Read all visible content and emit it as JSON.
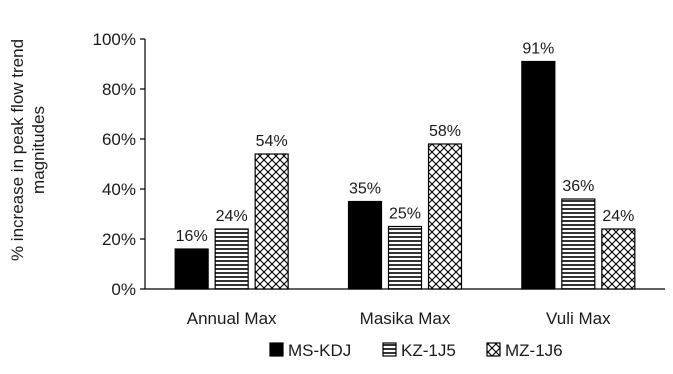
{
  "chart_data": {
    "type": "bar",
    "title": "",
    "xlabel": "",
    "ylabel_lines": [
      "% increase in peak flow trend",
      "magnitudes"
    ],
    "categories": [
      "Annual Max",
      "Masika Max",
      "Vuli Max"
    ],
    "series": [
      {
        "name": "MS-KDJ",
        "values": [
          16,
          35,
          91
        ],
        "labels": [
          "16%",
          "35%",
          "91%"
        ],
        "pattern": "solid"
      },
      {
        "name": "KZ-1J5",
        "values": [
          24,
          25,
          36
        ],
        "labels": [
          "24%",
          "25%",
          "36%"
        ],
        "pattern": "horizontal-lines"
      },
      {
        "name": "MZ-1J6",
        "values": [
          54,
          58,
          24
        ],
        "labels": [
          "54%",
          "58%",
          "24%"
        ],
        "pattern": "crosshatch"
      }
    ],
    "ylim": [
      0,
      100
    ],
    "yticks": [
      0,
      20,
      40,
      60,
      80,
      100
    ],
    "ytick_labels": [
      "0%",
      "20%",
      "40%",
      "60%",
      "80%",
      "100%"
    ],
    "grid": false,
    "legend_position": "bottom"
  },
  "colors": {
    "bar_stroke": "#000000",
    "pattern_line": "#000000",
    "bar_fill_solid": "#000000"
  }
}
